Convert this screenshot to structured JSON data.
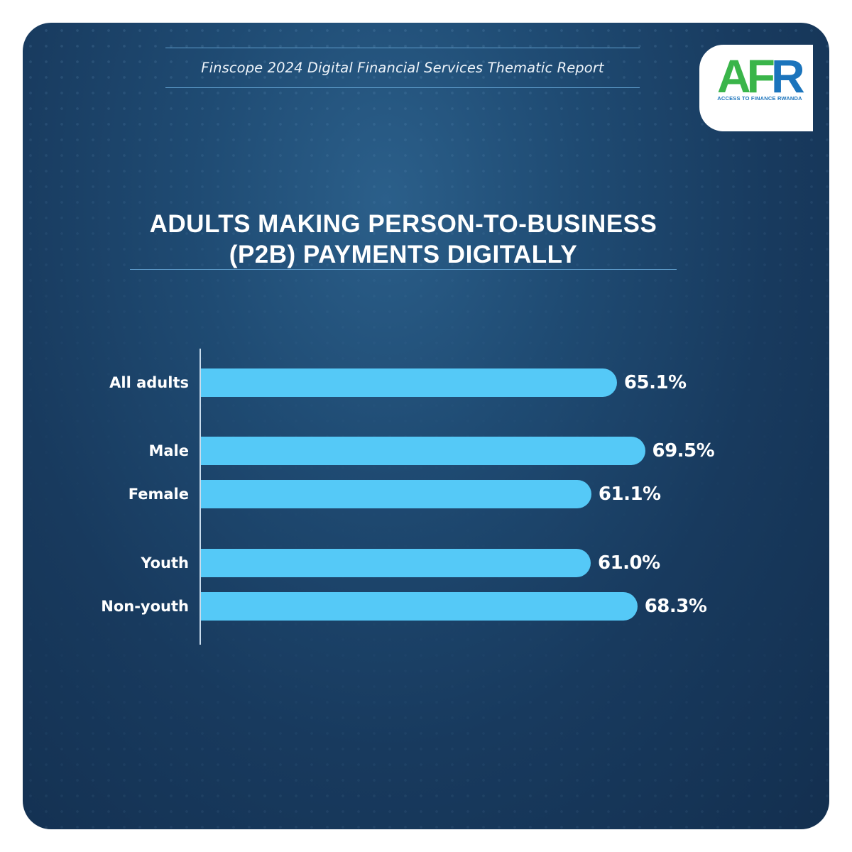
{
  "header": {
    "subtitle": "Finscope 2024 Digital Financial Services Thematic Report"
  },
  "logo": {
    "mark": "AFR",
    "tagline": "ACCESS TO FINANCE RWANDA",
    "colors": {
      "green": "#3ab54a",
      "blue": "#1b74bc"
    }
  },
  "colors": {
    "background": "#1f4b73",
    "bar": "#55c9f7",
    "text": "#ffffff"
  },
  "chart_data": {
    "type": "bar",
    "orientation": "horizontal",
    "title": "ADULTS MAKING PERSON-TO-BUSINESS (P2B) PAYMENTS DIGITALLY",
    "title_lines": [
      "ADULTS MAKING PERSON-TO-BUSINESS",
      "(P2B) PAYMENTS DIGITALLY"
    ],
    "categories": [
      "All adults",
      "Male",
      "Female",
      "Youth",
      "Non-youth"
    ],
    "values": [
      65.1,
      69.5,
      61.1,
      61.0,
      68.3
    ],
    "value_labels": [
      "65.1%",
      "69.5%",
      "61.1%",
      "61.0%",
      "68.3%"
    ],
    "unit": "%",
    "groups": [
      [
        "All adults"
      ],
      [
        "Male",
        "Female"
      ],
      [
        "Youth",
        "Non-youth"
      ]
    ],
    "grid": false,
    "legend": "none"
  }
}
